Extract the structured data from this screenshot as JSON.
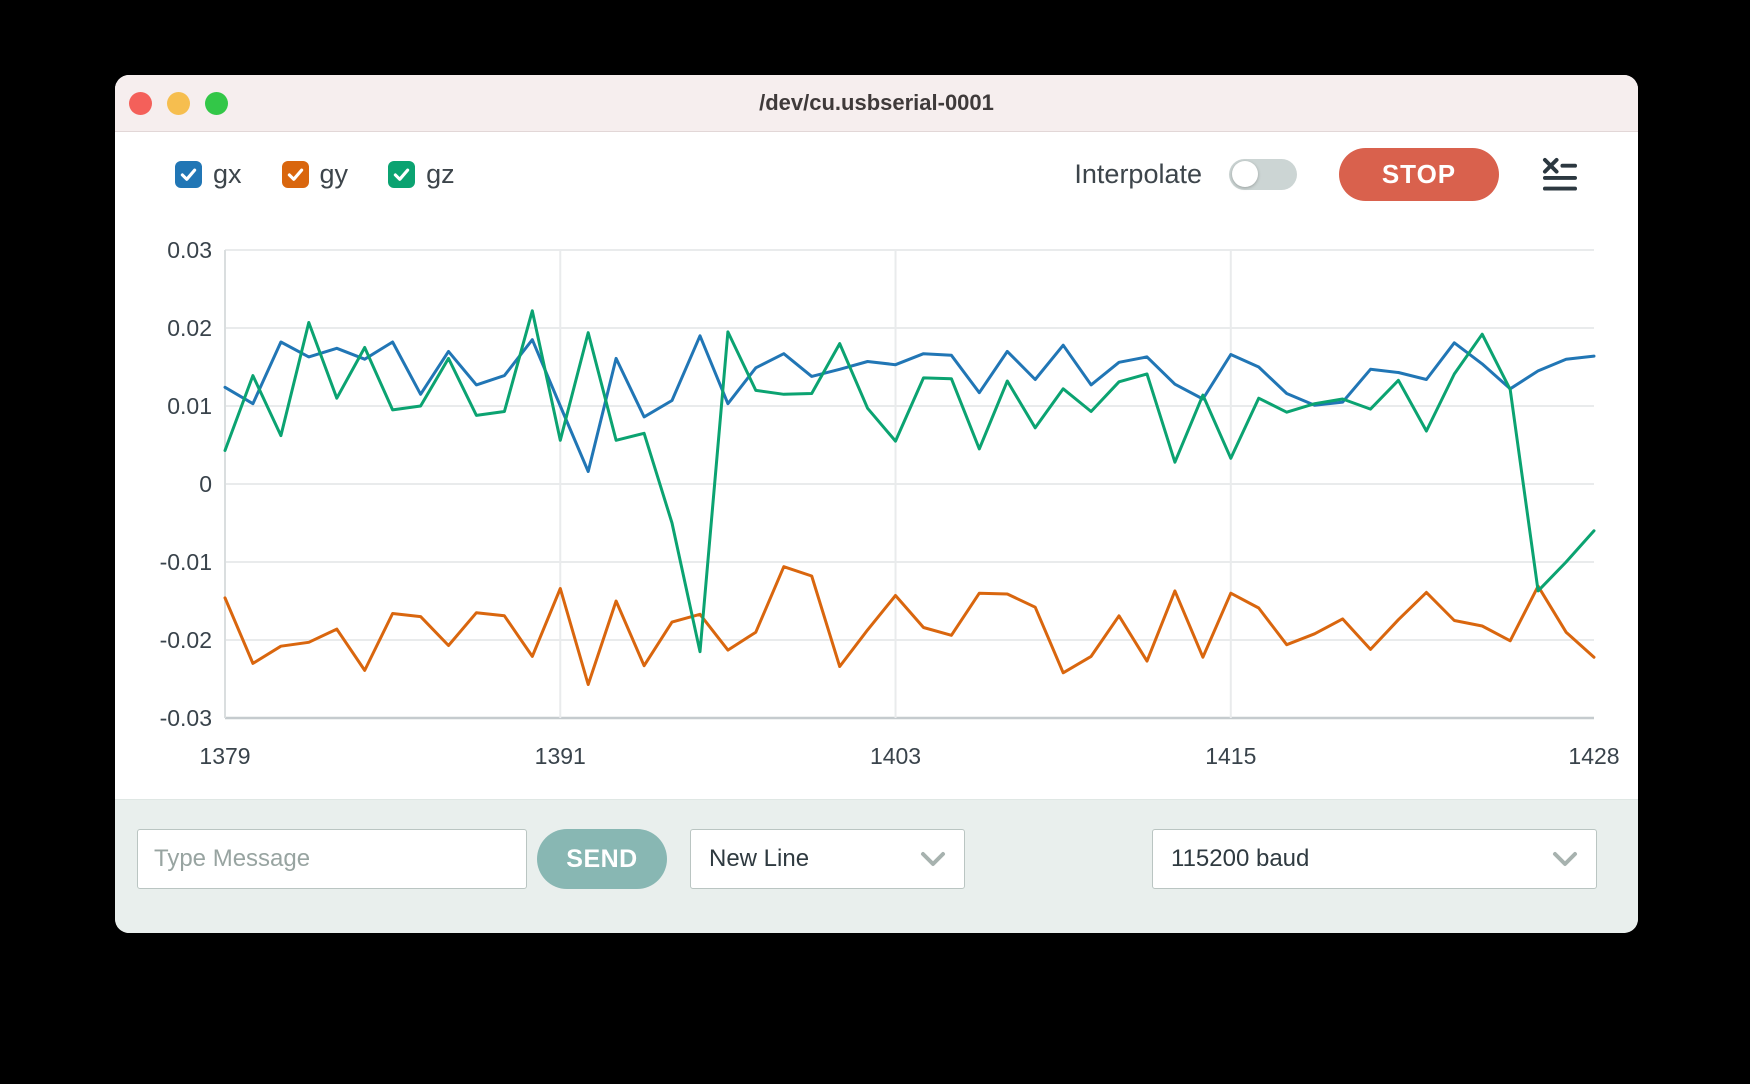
{
  "window": {
    "title": "/dev/cu.usbserial-0001"
  },
  "traffic_lights": {
    "close_color": "#f4605a",
    "minimize_color": "#f6be4f",
    "maximize_color": "#33c748"
  },
  "header": {
    "series_toggles": [
      {
        "label": "gx",
        "color": "#2176b5",
        "checked": true
      },
      {
        "label": "gy",
        "color": "#d9660e",
        "checked": true
      },
      {
        "label": "gz",
        "color": "#0ba371",
        "checked": true
      }
    ],
    "interpolate_label": "Interpolate",
    "interpolate_on": false,
    "stop_label": "STOP",
    "stop_color": "#d9614d"
  },
  "chart_data": {
    "type": "line",
    "title": "",
    "xlabel": "",
    "ylabel": "",
    "xlim": [
      1379,
      1428
    ],
    "ylim": [
      -0.03,
      0.03
    ],
    "xticks": [
      1379,
      1391,
      1403,
      1415,
      1428
    ],
    "yticks": [
      0.03,
      0.02,
      0.01,
      0,
      -0.01,
      -0.02,
      -0.03
    ],
    "grid": true,
    "legend_position": "top-left-as-checkboxes",
    "x": [
      1379,
      1380,
      1381,
      1382,
      1383,
      1384,
      1385,
      1386,
      1387,
      1388,
      1389,
      1390,
      1391,
      1392,
      1393,
      1394,
      1395,
      1396,
      1397,
      1398,
      1399,
      1400,
      1401,
      1402,
      1403,
      1404,
      1405,
      1406,
      1407,
      1408,
      1409,
      1410,
      1411,
      1412,
      1413,
      1414,
      1415,
      1416,
      1417,
      1418,
      1419,
      1420,
      1421,
      1422,
      1423,
      1424,
      1425,
      1426,
      1427,
      1428
    ],
    "series": [
      {
        "name": "gx",
        "color": "#2176b5",
        "values": [
          0.0124,
          0.0103,
          0.0182,
          0.0163,
          0.0174,
          0.016,
          0.0182,
          0.0115,
          0.017,
          0.0127,
          0.0139,
          0.0185,
          0.01,
          0.0016,
          0.0161,
          0.0086,
          0.0107,
          0.019,
          0.0103,
          0.0149,
          0.0167,
          0.0138,
          0.0147,
          0.0157,
          0.0153,
          0.0167,
          0.0165,
          0.0117,
          0.017,
          0.0134,
          0.0178,
          0.0127,
          0.0156,
          0.0163,
          0.0128,
          0.0109,
          0.0166,
          0.015,
          0.0116,
          0.0101,
          0.0105,
          0.0147,
          0.0143,
          0.0134,
          0.0181,
          0.0154,
          0.0122,
          0.0145,
          0.016,
          0.0164
        ]
      },
      {
        "name": "gy",
        "color": "#d9660e",
        "values": [
          -0.0146,
          -0.023,
          -0.0208,
          -0.0203,
          -0.0186,
          -0.0239,
          -0.0166,
          -0.017,
          -0.0207,
          -0.0165,
          -0.0169,
          -0.0221,
          -0.0134,
          -0.0257,
          -0.015,
          -0.0233,
          -0.0177,
          -0.0167,
          -0.0213,
          -0.019,
          -0.0106,
          -0.0118,
          -0.0234,
          -0.0187,
          -0.0143,
          -0.0184,
          -0.0194,
          -0.014,
          -0.0141,
          -0.0158,
          -0.0242,
          -0.0221,
          -0.0169,
          -0.0227,
          -0.0137,
          -0.0222,
          -0.014,
          -0.0159,
          -0.0206,
          -0.0192,
          -0.0173,
          -0.0212,
          -0.0174,
          -0.0139,
          -0.0175,
          -0.0182,
          -0.0201,
          -0.0131,
          -0.019,
          -0.0222
        ]
      },
      {
        "name": "gz",
        "color": "#0ba371",
        "values": [
          0.0043,
          0.0139,
          0.0062,
          0.0207,
          0.011,
          0.0175,
          0.0095,
          0.01,
          0.0161,
          0.0088,
          0.0093,
          0.0222,
          0.0056,
          0.0194,
          0.0056,
          0.0065,
          -0.005,
          -0.0215,
          0.0195,
          0.012,
          0.0115,
          0.0116,
          0.018,
          0.0097,
          0.0055,
          0.0136,
          0.0135,
          0.0045,
          0.0132,
          0.0072,
          0.0122,
          0.0093,
          0.0131,
          0.0141,
          0.0028,
          0.0114,
          0.0033,
          0.011,
          0.0092,
          0.0103,
          0.0109,
          0.0096,
          0.0133,
          0.0068,
          0.0141,
          0.0192,
          0.0121,
          -0.0137,
          -0.01,
          -0.006
        ]
      }
    ]
  },
  "footer": {
    "message_placeholder": "Type Message",
    "send_label": "SEND",
    "send_color": "#88b7b3",
    "line_ending_value": "New Line",
    "baud_value": "115200 baud"
  }
}
